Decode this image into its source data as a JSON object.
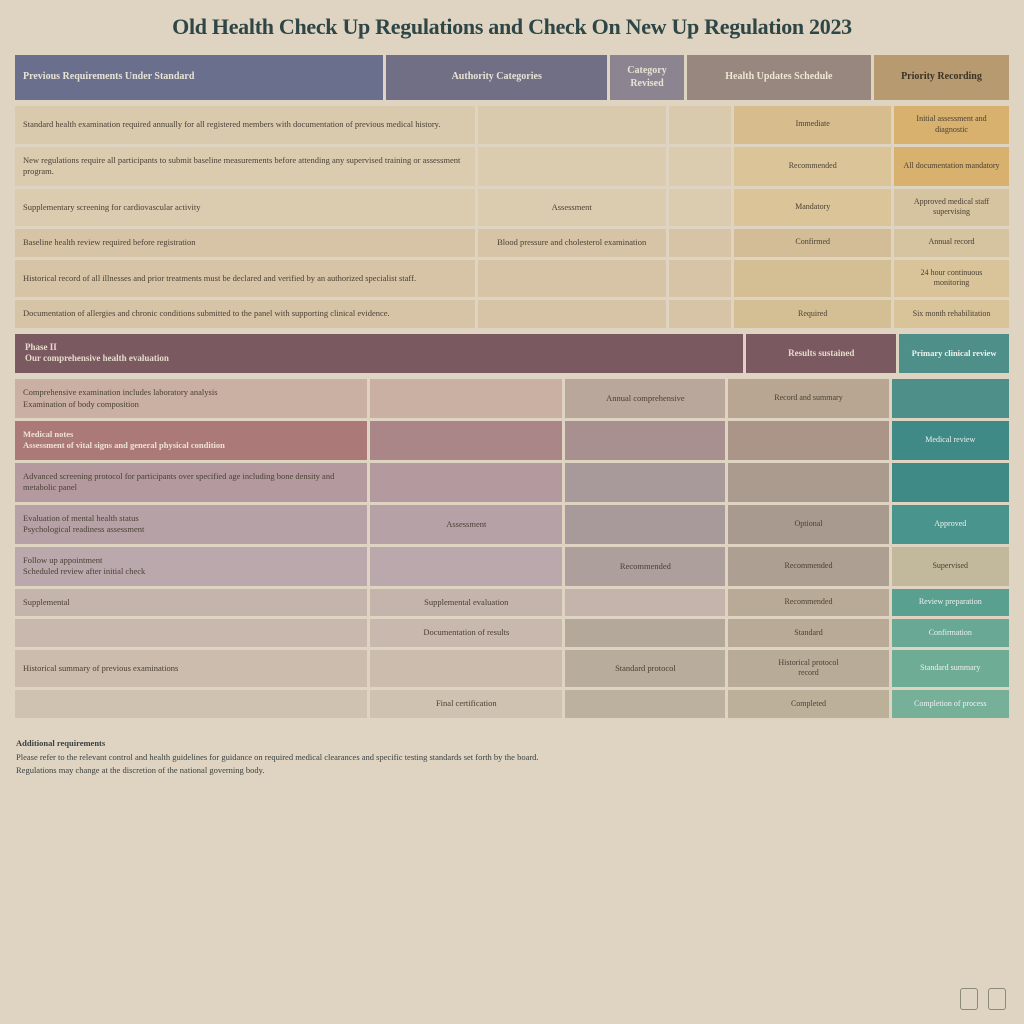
{
  "title": "Old Health Check Up Regulations and Check On New Up Regulation 2023",
  "columns": [
    {
      "label": "Previous Requirements Under Standard",
      "bg": "#6a6f8e",
      "fg": "#e8e4d4"
    },
    {
      "label": "Authority Categories",
      "bg": "#706f86",
      "fg": "#e8e4d4"
    },
    {
      "label": "Category Revised",
      "bg": "#8d8491",
      "fg": "#e8e4d4"
    },
    {
      "label": "Health Updates Schedule",
      "bg": "#97877f",
      "fg": "#efe6d4"
    },
    {
      "label": "Priority Recording",
      "bg": "#b79a6f",
      "fg": "#3a3325"
    }
  ],
  "rows": [
    {
      "bg": [
        "#d9caae",
        "#d9caae",
        "#d9caae",
        "#d7bd8e",
        "#d8b16e"
      ],
      "cells": [
        "Standard health examination required annually for all registered members with documentation of previous medical history.",
        "",
        "",
        "Immediate",
        "Initial assessment and diagnostic"
      ]
    },
    {
      "bg": [
        "#dbccb0",
        "#dbccb0",
        "#dbccb0",
        "#dcc499",
        "#d8b16e"
      ],
      "cells": [
        "New regulations require all participants to submit baseline measurements before attending any supervised training or assessment program.",
        "",
        "",
        "Recommended",
        "All documentation mandatory"
      ]
    },
    {
      "bg": [
        "#dbccb0",
        "#dbccb0",
        "#dbccb0",
        "#dcc499",
        "#d6c3a0"
      ],
      "cells": [
        "Supplementary screening for cardiovascular activity",
        "Assessment",
        "",
        "Mandatory",
        "Approved medical staff supervising"
      ]
    },
    {
      "bg": [
        "#d7c4a6",
        "#d7c4a6",
        "#d7c4a6",
        "#d2bd96",
        "#d6c3a0"
      ],
      "cells": [
        "Baseline health review required before registration",
        "Blood pressure and cholesterol examination",
        "",
        "Confirmed",
        "Annual record"
      ]
    },
    {
      "bg": [
        "#d7c4a6",
        "#d7c4a6",
        "#d7c4a6",
        "#d4bf94",
        "#d9c49a"
      ],
      "cells": [
        "Historical record of all illnesses and prior treatments must be declared and verified by an authorized specialist staff.",
        "",
        "",
        "",
        "24 hour continuous monitoring"
      ]
    },
    {
      "bg": [
        "#d7c4a6",
        "#d7c4a6",
        "#d7c4a6",
        "#d4bf94",
        "#d9c49a"
      ],
      "cells": [
        "Documentation of allergies and chronic conditions submitted to the panel with supporting clinical evidence.",
        "",
        "",
        "Required",
        "Six month rehabilitation"
      ]
    }
  ],
  "subheader": {
    "bg": "#7a5a60",
    "fg": "#e6dccc",
    "left": "Phase II\nOur comprehensive health evaluation",
    "right": "Results sustained",
    "side_bg": "#4f8f8a",
    "side_fg": "#eef2ec",
    "side": "Primary clinical review"
  },
  "rows2": [
    {
      "bg": [
        "#c9b0a2",
        "#c9b0a2",
        "#b8a79a",
        "#b9a692",
        "#4f8f8a"
      ],
      "cells": [
        "Comprehensive examination includes laboratory analysis\nExamination of body composition",
        "",
        "Annual comprehensive",
        "Record and summary",
        ""
      ],
      "fg4": "#eef2ec"
    },
    {
      "bg": [
        "#ab7a78",
        "#ab8688",
        "#a89090",
        "#ab9588",
        "#3f8a86"
      ],
      "cells": [
        "Medical notes\nAssessment of vital signs and general physical condition",
        "",
        "",
        "",
        "Medical review"
      ],
      "fg0": "#efe3d4",
      "fg4": "#eef2ec",
      "bold0": true
    },
    {
      "bg": [
        "#b49a9e",
        "#b49a9e",
        "#a89a9a",
        "#ab9a8e",
        "#3f8a86"
      ],
      "cells": [
        "Advanced screening protocol for participants over specified age including bone density and metabolic panel",
        "",
        "",
        "",
        ""
      ],
      "fg4": "#eef2ec"
    },
    {
      "bg": [
        "#b6a2a6",
        "#b6a2a6",
        "#a89a9a",
        "#a89a8e",
        "#4a948e"
      ],
      "cells": [
        "Evaluation of mental health status\nPsychological readiness assessment",
        "Assessment",
        "",
        "Optional",
        "Approved"
      ],
      "fg4": "#eef2ec"
    },
    {
      "bg": [
        "#baa8ac",
        "#baa8ac",
        "#ad9f9c",
        "#ad9f92",
        "#c2b89c"
      ],
      "cells": [
        "Follow up appointment\nScheduled review after initial check",
        "",
        "Recommended",
        "Recommended",
        "Supervised"
      ]
    },
    {
      "bg": [
        "#c4b4ac",
        "#c4b4ac",
        "#c4b4ac",
        "#b8aa96",
        "#5aa090"
      ],
      "cells": [
        "Supplemental",
        "Supplemental evaluation",
        "",
        "Recommended",
        "Review preparation"
      ],
      "fg4": "#eef2ec"
    },
    {
      "bg": [
        "#c8b8ae",
        "#c8b8ae",
        "#b4a89a",
        "#b8aa96",
        "#68a894"
      ],
      "cells": [
        "",
        "Documentation of results",
        "",
        "Standard",
        "Confirmation"
      ],
      "fg4": "#eef2ec"
    },
    {
      "bg": [
        "#ccbcae",
        "#ccbcae",
        "#b8ac9c",
        "#b8ac98",
        "#6eac96"
      ],
      "cells": [
        "Historical summary of previous examinations",
        "",
        "Standard protocol",
        "Historical protocol\nrecord",
        "Standard summary"
      ],
      "fg4": "#eef2ec"
    },
    {
      "bg": [
        "#d0c2b0",
        "#d0c2b0",
        "#bcb09e",
        "#bcb09a",
        "#76b098"
      ],
      "cells": [
        "",
        "Final certification",
        "",
        "Completed",
        "Completion of process"
      ],
      "fg4": "#eef2ec"
    }
  ],
  "footer": {
    "title": "Additional requirements",
    "line1": "Please refer to the relevant control and health guidelines for guidance on required medical clearances and specific testing standards set forth by the board.",
    "line2": "Regulations may change at the discretion of the national governing body."
  },
  "colors": {
    "page_bg": "#dfd4c2",
    "title_color": "#2f4646"
  }
}
